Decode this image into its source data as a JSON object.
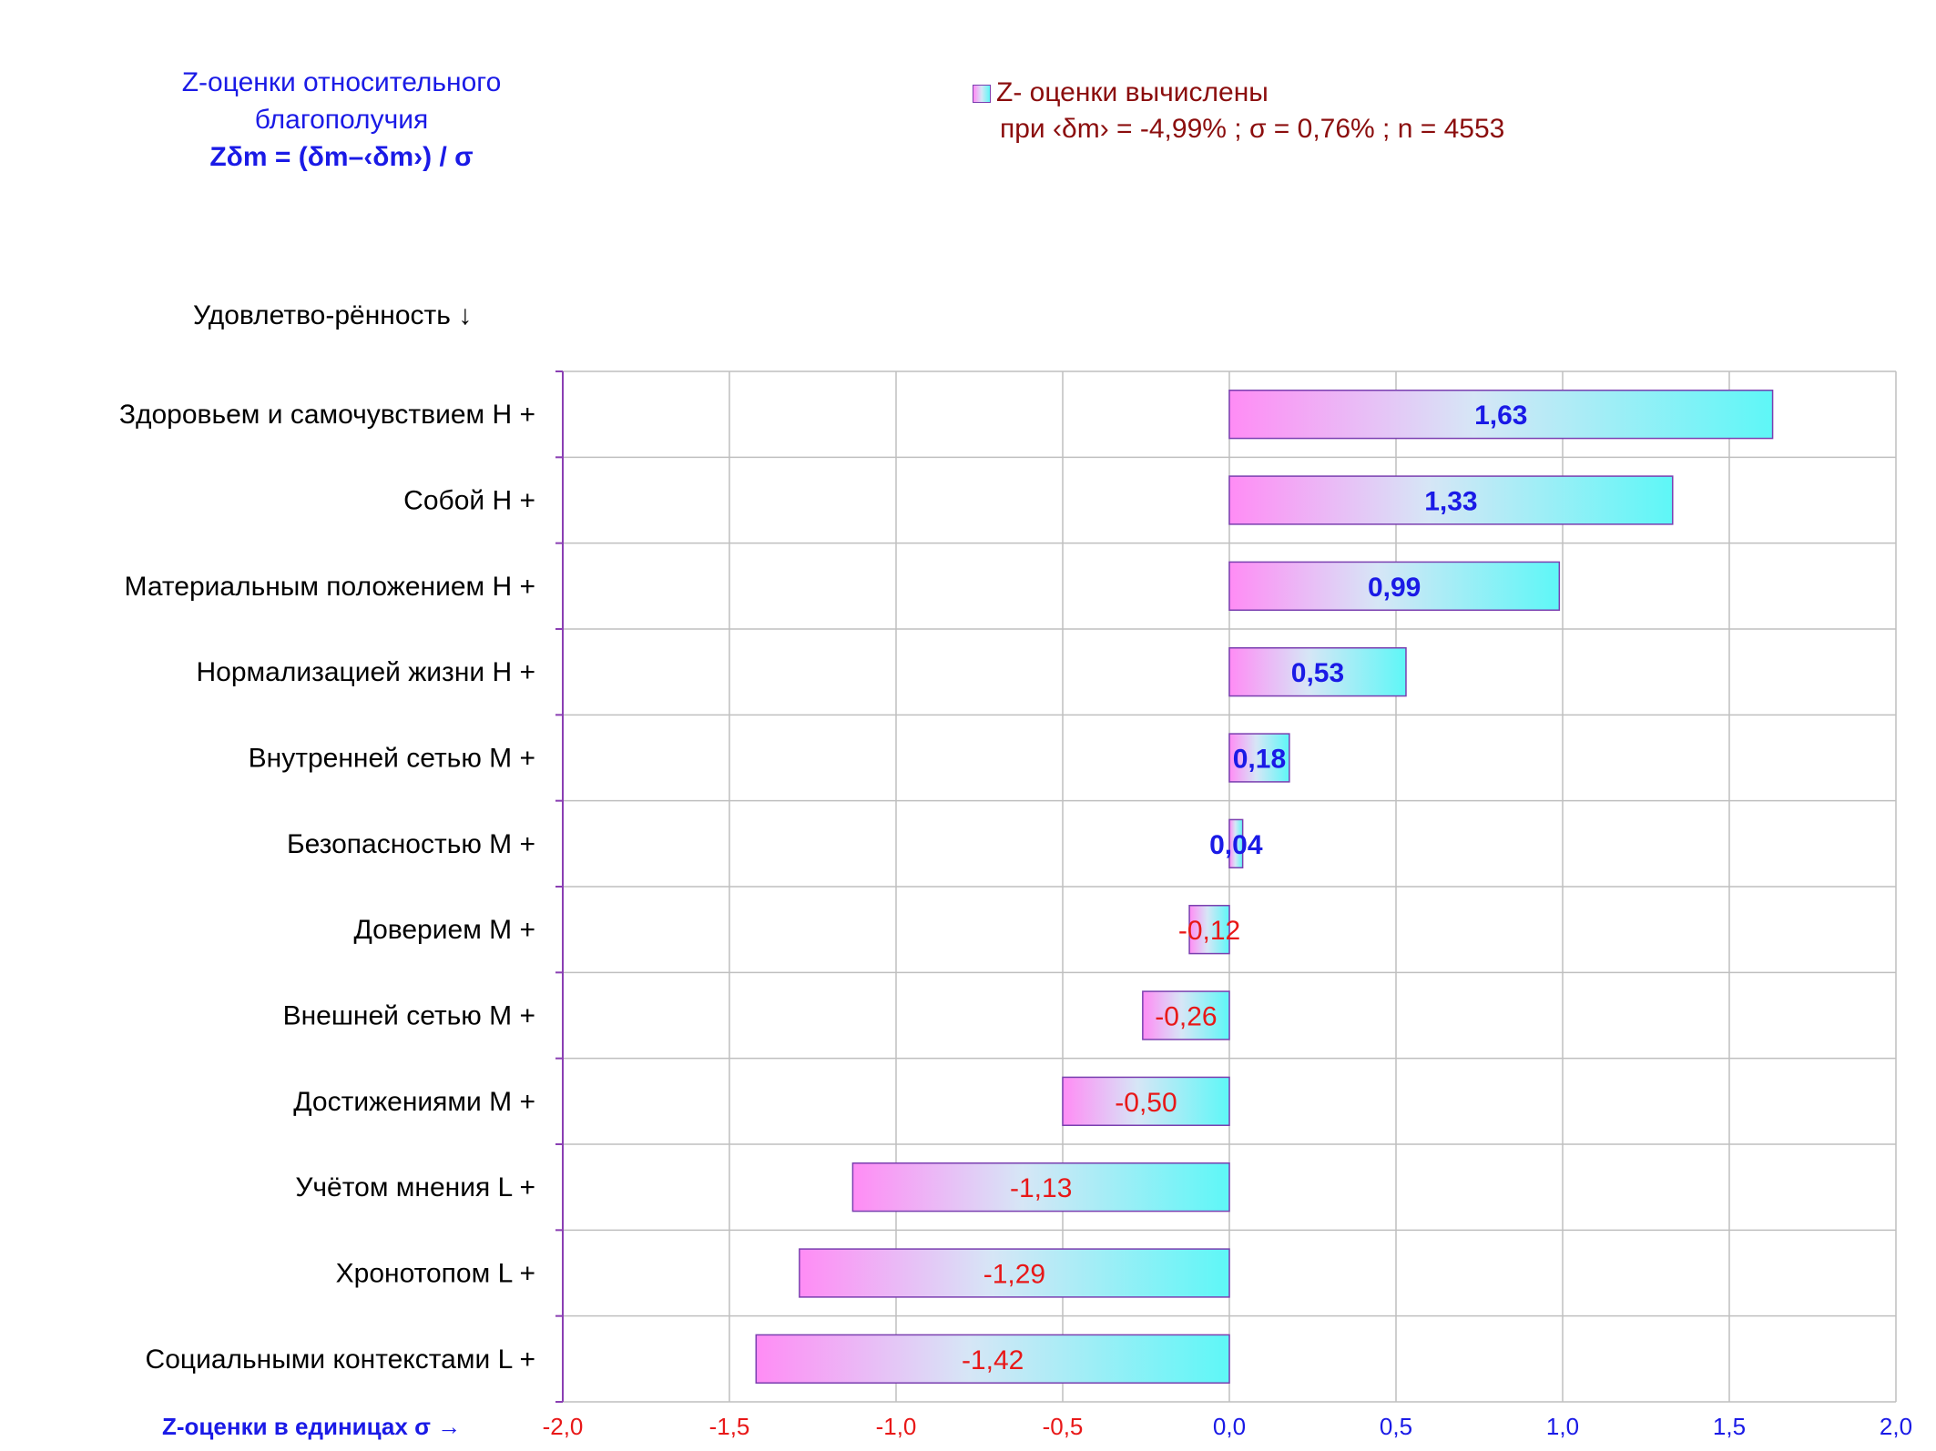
{
  "title": {
    "line1": "Z-оценки  относительного",
    "line2": "благополучия",
    "line3": "Zδm = (δm–‹δm›)  / σ"
  },
  "legend": {
    "label": "Z- оценки вычислены",
    "params": "при ‹δm› = -4,99% ; σ = 0,76% ; n = 4553"
  },
  "axis_titles": {
    "category": "Удовлетво-рённость ↓",
    "value": "Z-оценки в единицах σ →"
  },
  "colors": {
    "positive": "#1a1ae6",
    "negative": "#e81818",
    "bar_left": "#ff8cf5",
    "bar_mid": "#d6e6f6",
    "bar_right": "#5ef7f7",
    "bar_border": "#7a3fb0",
    "grid": "#bfbfbf"
  },
  "chart_data": {
    "type": "bar",
    "orientation": "horizontal",
    "categories": [
      "Здоровьем и самочувствием  H +",
      "Собой  H +",
      "Материальным положением  H +",
      "Нормализацией жизни  H +",
      "Внутренней сетью  M +",
      "Безопасностью  M +",
      "Доверием  M +",
      "Внешней сетью  M +",
      "Достижениями  M +",
      "Учётом мнения  L +",
      "Хронотопом  L +",
      "Социальными контекстами  L +"
    ],
    "values": [
      1.63,
      1.33,
      0.99,
      0.53,
      0.18,
      0.04,
      -0.12,
      -0.26,
      -0.5,
      -1.13,
      -1.29,
      -1.42
    ],
    "value_labels": [
      "1,63",
      "1,33",
      "0,99",
      "0,53",
      "0,18",
      "0,04",
      "-0,12",
      "-0,26",
      "-0,50",
      "-1,13",
      "-1,29",
      "-1,42"
    ],
    "xlim": [
      -2.0,
      2.0
    ],
    "ticks": [
      -2.0,
      -1.5,
      -1.0,
      -0.5,
      0.0,
      0.5,
      1.0,
      1.5,
      2.0
    ],
    "tick_labels": [
      "-2,0",
      "-1,5",
      "-1,0",
      "-0,5",
      "0,0",
      "0,5",
      "1,0",
      "1,5",
      "2,0"
    ],
    "grid": true,
    "legend_position": "top-right"
  }
}
